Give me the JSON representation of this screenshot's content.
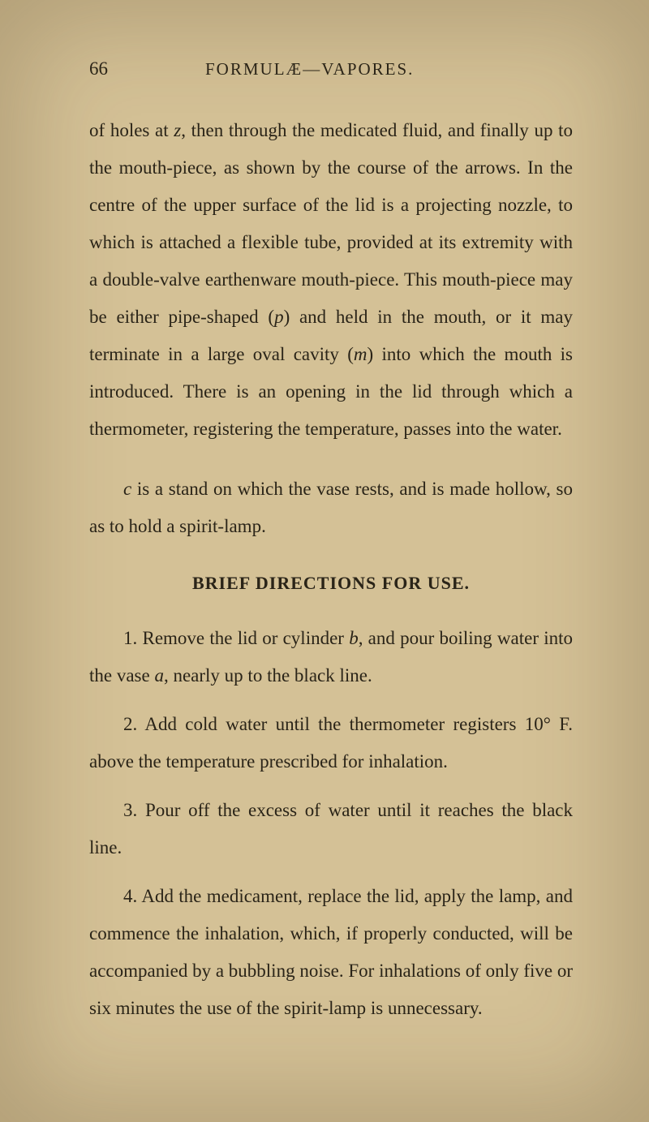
{
  "page": {
    "number": "66",
    "title": "FORMULÆ—VAPORES.",
    "background_color": "#d4c196",
    "text_color": "#2a2418"
  },
  "paragraphs": {
    "p1_part1": "of holes at ",
    "p1_var1": "z",
    "p1_part2": ", then through the medicated fluid, and finally up to the mouth-piece, as shown by the course of the arrows. In the centre of the upper surface of the lid is a projecting nozzle, to which is attached a flexible tube, provided at its extremity with a double-valve earthenware mouth-piece. This mouth-piece may be either pipe-shaped (",
    "p1_var2": "p",
    "p1_part3": ") and held in the mouth, or it may terminate in a large oval cavity (",
    "p1_var3": "m",
    "p1_part4": ") into which the mouth is introduced. There is an opening in the lid through which a thermometer, registering the temperature, passes into the water.",
    "p2_var1": "c",
    "p2_part1": " is a stand on which the vase rests, and is made hollow, so as to hold a spirit-lamp."
  },
  "section": {
    "heading": "BRIEF DIRECTIONS FOR USE."
  },
  "items": {
    "item1_num": "1. Remove the lid or cylinder ",
    "item1_var1": "b",
    "item1_part2": ", and pour boiling water into the vase ",
    "item1_var2": "a",
    "item1_part3": ", nearly up to the black line.",
    "item2": "2. Add cold water until the thermometer registers 10° F. above the temperature prescribed for inhalation.",
    "item3": "3. Pour off the excess of water until it reaches the black line.",
    "item4": "4. Add the medicament, replace the lid, apply the lamp, and commence the inhalation, which, if properly conducted, will be accompanied by a bubbling noise. For inhalations of only five or six minutes the use of the spirit-lamp is unnecessary."
  }
}
